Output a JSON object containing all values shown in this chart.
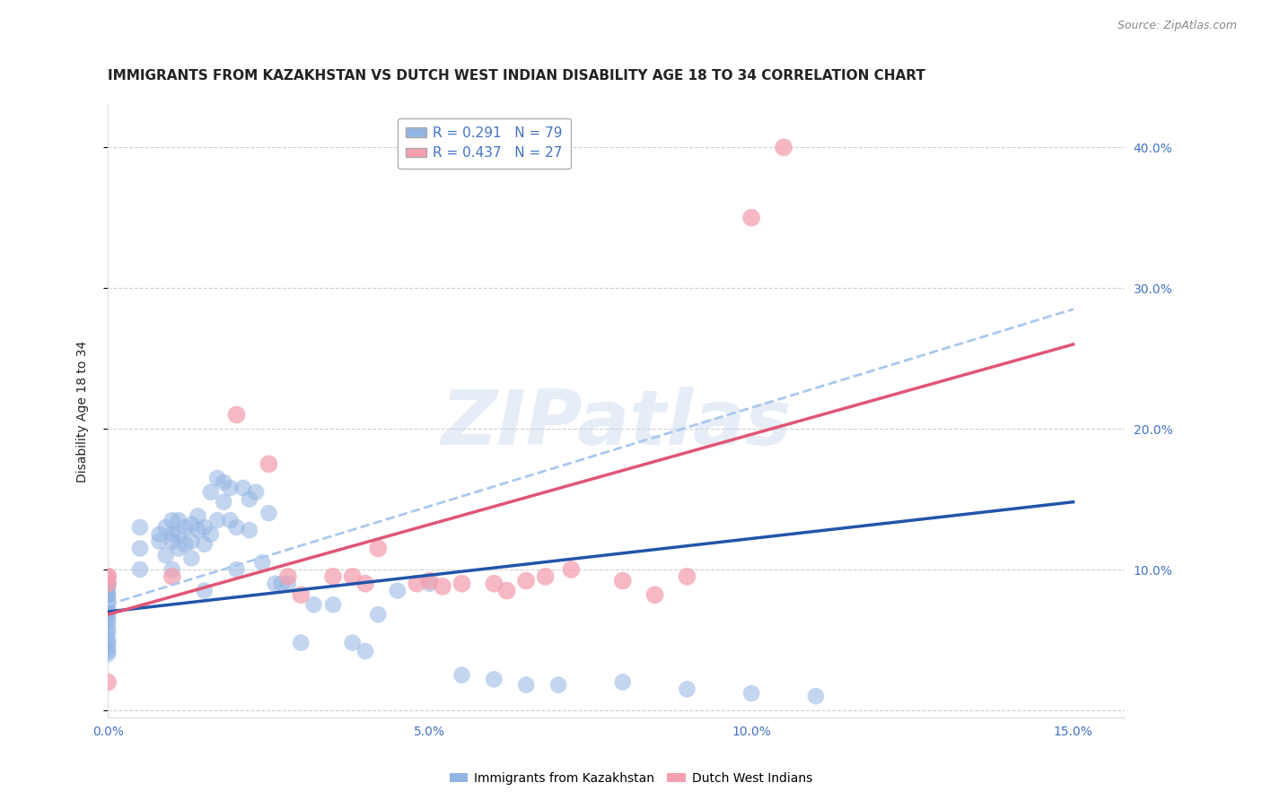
{
  "title": "IMMIGRANTS FROM KAZAKHSTAN VS DUTCH WEST INDIAN DISABILITY AGE 18 TO 34 CORRELATION CHART",
  "source": "Source: ZipAtlas.com",
  "ylabel": "Disability Age 18 to 34",
  "xlabel_labels": [
    "0.0%",
    "5.0%",
    "10.0%",
    "15.0%"
  ],
  "xlabel_vals": [
    0.0,
    0.05,
    0.1,
    0.15
  ],
  "ylabel_right_labels": [
    "10.0%",
    "20.0%",
    "30.0%",
    "40.0%"
  ],
  "ylabel_right_vals": [
    0.1,
    0.2,
    0.3,
    0.4
  ],
  "xlim": [
    0.0,
    0.158
  ],
  "ylim": [
    -0.005,
    0.43
  ],
  "blue_R": 0.291,
  "blue_N": 79,
  "pink_R": 0.437,
  "pink_N": 27,
  "blue_color": "#92b4e3",
  "pink_color": "#f4a0b0",
  "blue_line_color": "#2255aa",
  "pink_line_color": "#e05575",
  "dashed_line_color": "#aac8ee",
  "blue_label": "Immigrants from Kazakhstan",
  "pink_label": "Dutch West Indians",
  "watermark": "ZIPatlas",
  "blue_x": [
    0.0,
    0.0,
    0.0,
    0.0,
    0.0,
    0.0,
    0.0,
    0.0,
    0.0,
    0.0,
    0.0,
    0.0,
    0.0,
    0.0,
    0.0,
    0.0,
    0.0,
    0.0,
    0.0,
    0.0,
    0.005,
    0.005,
    0.005,
    0.008,
    0.008,
    0.009,
    0.009,
    0.01,
    0.01,
    0.01,
    0.01,
    0.011,
    0.011,
    0.011,
    0.012,
    0.012,
    0.013,
    0.013,
    0.013,
    0.014,
    0.014,
    0.015,
    0.015,
    0.015,
    0.016,
    0.016,
    0.017,
    0.017,
    0.018,
    0.018,
    0.019,
    0.019,
    0.02,
    0.02,
    0.021,
    0.022,
    0.022,
    0.023,
    0.024,
    0.025,
    0.026,
    0.027,
    0.028,
    0.03,
    0.032,
    0.035,
    0.038,
    0.04,
    0.042,
    0.045,
    0.05,
    0.055,
    0.06,
    0.065,
    0.07,
    0.08,
    0.09,
    0.1,
    0.11
  ],
  "blue_y": [
    0.07,
    0.072,
    0.075,
    0.078,
    0.08,
    0.082,
    0.085,
    0.088,
    0.09,
    0.092,
    0.068,
    0.065,
    0.062,
    0.058,
    0.055,
    0.05,
    0.048,
    0.045,
    0.042,
    0.04,
    0.1,
    0.115,
    0.13,
    0.12,
    0.125,
    0.13,
    0.11,
    0.135,
    0.125,
    0.12,
    0.1,
    0.135,
    0.125,
    0.115,
    0.13,
    0.118,
    0.132,
    0.12,
    0.108,
    0.138,
    0.128,
    0.13,
    0.118,
    0.085,
    0.155,
    0.125,
    0.165,
    0.135,
    0.162,
    0.148,
    0.158,
    0.135,
    0.1,
    0.13,
    0.158,
    0.15,
    0.128,
    0.155,
    0.105,
    0.14,
    0.09,
    0.09,
    0.09,
    0.048,
    0.075,
    0.075,
    0.048,
    0.042,
    0.068,
    0.085,
    0.09,
    0.025,
    0.022,
    0.018,
    0.018,
    0.02,
    0.015,
    0.012,
    0.01
  ],
  "pink_x": [
    0.0,
    0.0,
    0.0,
    0.0,
    0.01,
    0.02,
    0.025,
    0.028,
    0.03,
    0.035,
    0.038,
    0.04,
    0.042,
    0.048,
    0.05,
    0.052,
    0.055,
    0.06,
    0.062,
    0.065,
    0.068,
    0.072,
    0.08,
    0.085,
    0.09,
    0.1,
    0.105
  ],
  "pink_y": [
    0.095,
    0.095,
    0.09,
    0.02,
    0.095,
    0.21,
    0.175,
    0.095,
    0.082,
    0.095,
    0.095,
    0.09,
    0.115,
    0.09,
    0.092,
    0.088,
    0.09,
    0.09,
    0.085,
    0.092,
    0.095,
    0.1,
    0.092,
    0.082,
    0.095,
    0.35,
    0.4
  ],
  "blue_line_x": [
    0.0,
    0.15
  ],
  "blue_line_y": [
    0.07,
    0.148
  ],
  "pink_line_x": [
    0.0,
    0.15
  ],
  "pink_line_y": [
    0.068,
    0.26
  ],
  "dashed_line_x": [
    0.0,
    0.15
  ],
  "dashed_line_y": [
    0.075,
    0.285
  ],
  "title_fontsize": 11,
  "axis_label_fontsize": 10,
  "tick_fontsize": 10,
  "legend_fontsize": 11,
  "background_color": "#ffffff",
  "grid_color": "#d0d0d0",
  "title_color": "#222222",
  "tick_color_right": "#4472c4",
  "tick_color_bottom": "#4472c4"
}
